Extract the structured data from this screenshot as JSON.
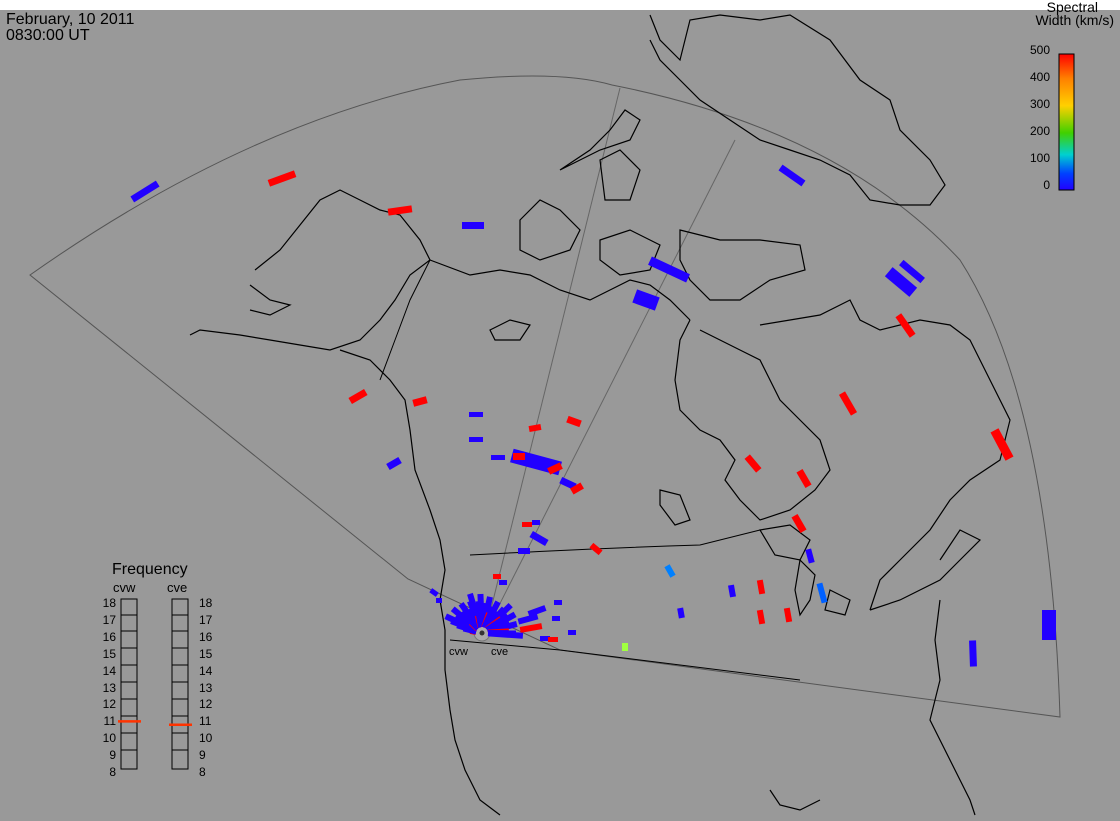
{
  "header": {
    "date": "February, 10 2011",
    "time": "0830:00 UT"
  },
  "colorbar": {
    "title_line1": "Spectral",
    "title_line2": "Width (km/s)",
    "ticks": [
      "500",
      "400",
      "300",
      "200",
      "100",
      "0"
    ],
    "colors": [
      "#ff0000",
      "#ff8000",
      "#ffd000",
      "#40d000",
      "#00d0d0",
      "#0040ff",
      "#2200ff"
    ]
  },
  "frequency_panel": {
    "title": "Frequency",
    "radar_left": "cvw",
    "radar_right": "cve",
    "levels": [
      "18",
      "17",
      "16",
      "15",
      "14",
      "13",
      "12",
      "11",
      "10",
      "9",
      "8"
    ],
    "cvw_value": 10.8,
    "cve_value": 10.6,
    "marker_color": "#ff3300"
  },
  "sites": [
    {
      "label": "cvw"
    },
    {
      "label": "cve"
    }
  ],
  "colors": {
    "background": "#999999",
    "coastline": "#000000",
    "fov": "#555555",
    "red_echo": "#ff0000",
    "blue_echo": "#2200ff"
  }
}
